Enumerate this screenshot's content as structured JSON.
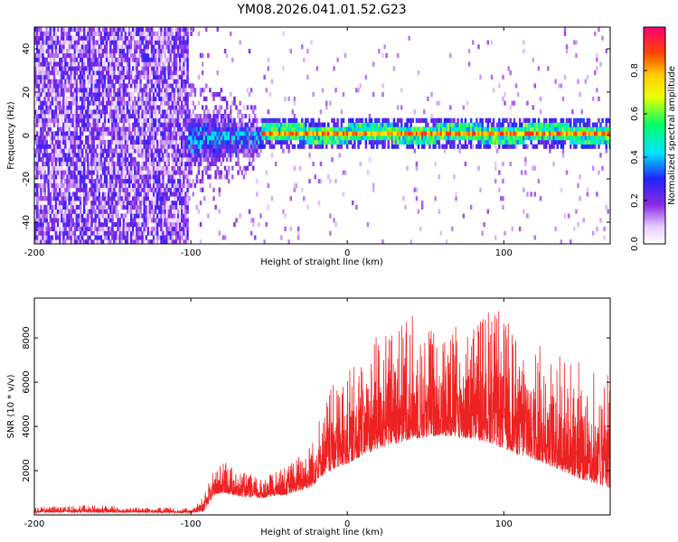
{
  "title": "YM08.2026.041.01.52.G23",
  "chart_data": [
    {
      "type": "heatmap",
      "xlabel": "Height of straight line (km)",
      "ylabel": "Frequency (Hz)",
      "xlim": [
        -200,
        168
      ],
      "ylim": [
        -50,
        50
      ],
      "x_ticks": [
        "-200",
        "-100",
        "0",
        "100"
      ],
      "x_tick_values": [
        -200,
        -100,
        0,
        100
      ],
      "y_ticks": [
        "-40",
        "-20",
        "0",
        "20",
        "40"
      ],
      "y_tick_values": [
        -40,
        -20,
        0,
        20,
        40
      ],
      "colorbar": {
        "label": "Normalized spectral amplitude",
        "range": [
          0,
          1
        ],
        "ticks": [
          "0.0",
          "0.2",
          "0.4",
          "0.6",
          "0.8"
        ],
        "tick_values": [
          0.0,
          0.2,
          0.4,
          0.6,
          0.8
        ]
      },
      "regions": [
        {
          "name": "noise",
          "x_range": [
            -200,
            -102
          ],
          "f_range": [
            -50,
            50
          ],
          "amplitude": 0.15
        },
        {
          "name": "onset",
          "x_range": [
            -102,
            -55
          ],
          "f_center": -2,
          "f_halfwidth": 12,
          "amplitude": 0.45
        },
        {
          "name": "signal",
          "x_range": [
            -55,
            168
          ],
          "f_center": 0,
          "f_halfwidth": 4,
          "amplitude": 0.9
        }
      ]
    },
    {
      "type": "line",
      "xlabel": "Height of straight line (km)",
      "ylabel": "SNR (10 * v/v)",
      "xlim": [
        -200,
        168
      ],
      "ylim": [
        0,
        9800
      ],
      "x_ticks": [
        "-200",
        "-100",
        "0",
        "100"
      ],
      "x_tick_values": [
        -200,
        -100,
        0,
        100
      ],
      "y_ticks": [
        "2000",
        "4000",
        "6000",
        "8000"
      ],
      "y_tick_values": [
        2000,
        4000,
        6000,
        8000
      ],
      "series": [
        {
          "name": "SNR",
          "color": "#ee2222",
          "x": [
            -200,
            -180,
            -160,
            -140,
            -120,
            -100,
            -92,
            -85,
            -78,
            -70,
            -60,
            -55,
            -48,
            -40,
            -30,
            -22,
            -18,
            -10,
            0,
            10,
            20,
            30,
            40,
            50,
            60,
            70,
            80,
            90,
            100,
            110,
            120,
            130,
            140,
            150,
            160,
            168
          ],
          "baseline": [
            100,
            120,
            100,
            110,
            100,
            100,
            150,
            900,
            1000,
            850,
            800,
            750,
            850,
            900,
            1100,
            1300,
            1700,
            2000,
            2300,
            2700,
            3000,
            3200,
            3400,
            3500,
            3600,
            3500,
            3400,
            3300,
            3000,
            2700,
            2500,
            2200,
            1900,
            1600,
            1400,
            1200
          ],
          "peak": [
            350,
            400,
            450,
            350,
            350,
            300,
            800,
            2100,
            2400,
            2000,
            1800,
            1600,
            1900,
            2200,
            2800,
            3400,
            4500,
            5800,
            6500,
            7200,
            8200,
            8500,
            9200,
            8600,
            8400,
            8600,
            9000,
            9600,
            9100,
            8300,
            7800,
            7600,
            7200,
            7000,
            6500,
            7000
          ]
        }
      ]
    }
  ]
}
